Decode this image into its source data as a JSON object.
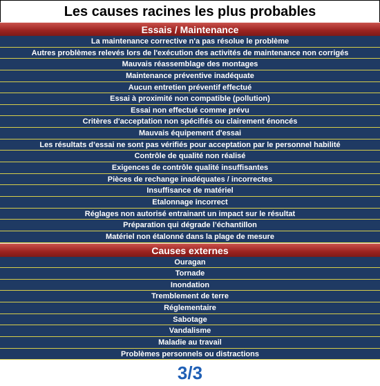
{
  "title": "Les causes racines les plus probables",
  "sections": [
    {
      "title": "Essais / Maintenance",
      "items": [
        "La maintenance corrective n'a pas résolue le problème",
        "Autres problèmes relevés lors de l'exécution des activités de maintenance non corrigés",
        "Mauvais réassemblage des montages",
        "Maintenance préventive inadéquate",
        "Aucun entretien préventif effectué",
        "Essai à proximité non compatible (pollution)",
        "Essai non effectué comme prévu",
        "Critères d'acceptation non spécifiés ou clairement énoncés",
        "Mauvais équipement d'essai",
        "Les résultats d’essai ne sont pas vérifiés pour acceptation par le personnel habilité",
        "Contrôle de qualité non réalisé",
        "Exigences de contrôle qualité insuffisantes",
        "Pièces de rechange inadéquates / incorrectes",
        "Insuffisance de matériel",
        "Etalonnage incorrect",
        "Réglages non autorisé entrainant un impact sur le résultat",
        "Préparation qui dégrade l’échantillon",
        "Matériel non étalonné dans la plage de mesure"
      ]
    },
    {
      "title": "Causes externes",
      "items": [
        "Ouragan",
        "Tornade",
        "Inondation",
        "Tremblement de terre",
        "Réglementaire",
        "Sabotage",
        "Vandalisme",
        "Maladie  au travail",
        "Problèmes personnels ou distractions"
      ]
    }
  ],
  "page": "3/3"
}
